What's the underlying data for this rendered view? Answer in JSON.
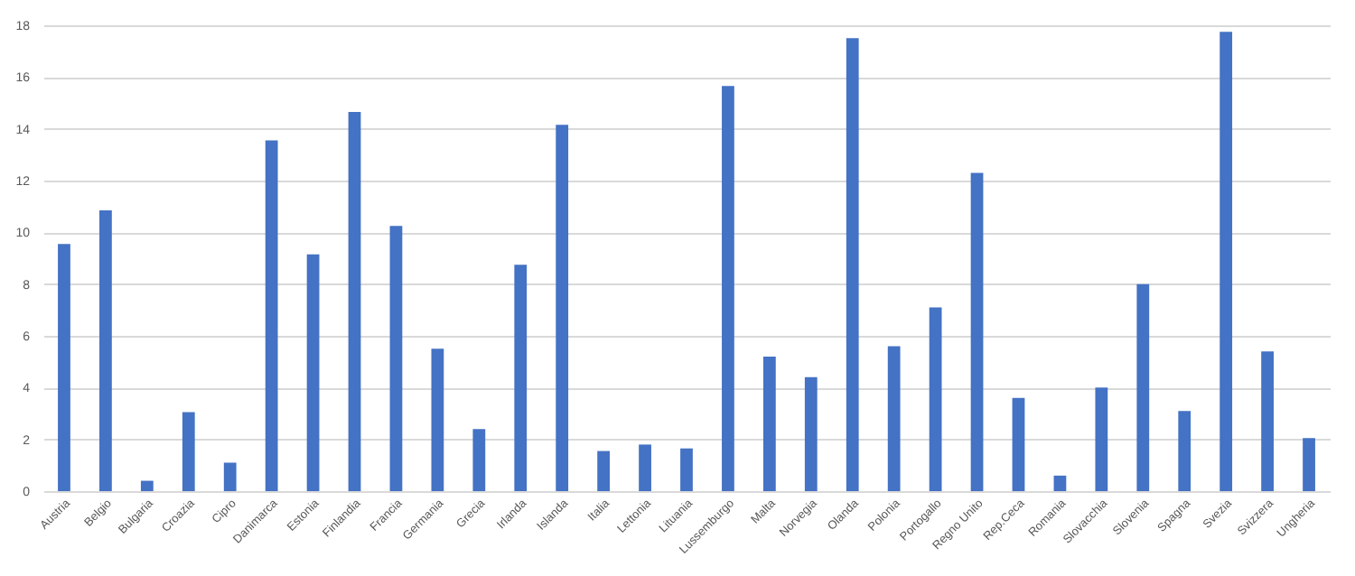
{
  "chart_data": {
    "type": "bar",
    "categories": [
      "Austria",
      "Belgio",
      "Bulgaria",
      "Croazia",
      "Cipro",
      "Danimarca",
      "Estonia",
      "Finlandia",
      "Francia",
      "Germania",
      "Grecia",
      "Irlanda",
      "Islanda",
      "Italia",
      "Lettonia",
      "Lituania",
      "Lussemburgo",
      "Malta",
      "Norvegia",
      "Olanda",
      "Polonia",
      "Portogallo",
      "Regno Unito",
      "Rep.Ceca",
      "Romania",
      "Slovacchia",
      "Slovenia",
      "Spagna",
      "Svezia",
      "Svizzera",
      "Ungheria"
    ],
    "values": [
      9.55,
      10.85,
      0.4,
      3.05,
      1.1,
      13.55,
      9.15,
      14.65,
      10.25,
      5.5,
      2.4,
      8.75,
      14.15,
      1.55,
      1.8,
      1.65,
      15.65,
      5.2,
      4.4,
      17.5,
      5.6,
      7.1,
      12.3,
      3.6,
      0.6,
      4.0,
      8.0,
      3.1,
      17.75,
      5.4,
      2.05
    ],
    "color": "#4472c4",
    "ylim": [
      0,
      18
    ],
    "yticks": [
      0,
      2,
      4,
      6,
      8,
      10,
      12,
      14,
      16,
      18
    ],
    "grid": "y"
  }
}
